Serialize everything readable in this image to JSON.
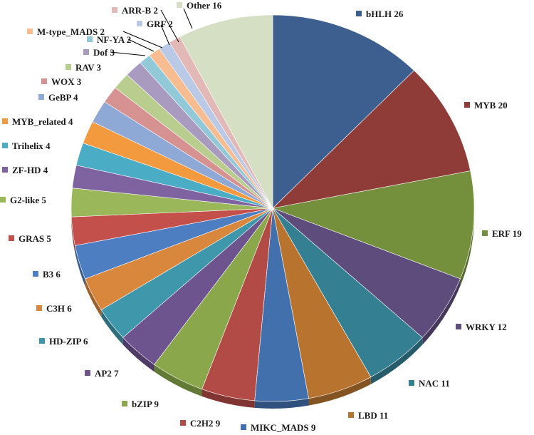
{
  "chart_data": {
    "type": "pie",
    "title": "",
    "start": "12 o'clock",
    "direction": "clockwise",
    "legend": "labels beside slices with colored square markers",
    "slices": [
      {
        "label": "bHLH",
        "value": 26,
        "color": "#3d5f8f"
      },
      {
        "label": "MYB",
        "value": 20,
        "color": "#8f3b38"
      },
      {
        "label": "ERF",
        "value": 19,
        "color": "#74903c"
      },
      {
        "label": "WRKY",
        "value": 12,
        "color": "#5e4c7c"
      },
      {
        "label": "NAC",
        "value": 11,
        "color": "#357f93"
      },
      {
        "label": "LBD",
        "value": 11,
        "color": "#b8732f"
      },
      {
        "label": "MIKC_MADS",
        "value": 9,
        "color": "#4270ad"
      },
      {
        "label": "C2H2",
        "value": 9,
        "color": "#b24a45"
      },
      {
        "label": "bZIP",
        "value": 9,
        "color": "#8aa84b"
      },
      {
        "label": "AP2",
        "value": 7,
        "color": "#6d548f"
      },
      {
        "label": "HD-ZIP",
        "value": 6,
        "color": "#3f97ac"
      },
      {
        "label": "C3H",
        "value": 6,
        "color": "#d8873d"
      },
      {
        "label": "B3",
        "value": 6,
        "color": "#4e7ec2"
      },
      {
        "label": "GRAS",
        "value": 5,
        "color": "#c4504c"
      },
      {
        "label": "G2-like",
        "value": 5,
        "color": "#9ab85a"
      },
      {
        "label": "ZF-HD",
        "value": 4,
        "color": "#7f63a1"
      },
      {
        "label": "Trihelix",
        "value": 4,
        "color": "#4bacc5"
      },
      {
        "label": "MYB_related",
        "value": 4,
        "color": "#f39a3f"
      },
      {
        "label": "GeBP",
        "value": 4,
        "color": "#8fa9d6"
      },
      {
        "label": "WOX",
        "value": 3,
        "color": "#d59291"
      },
      {
        "label": "RAV",
        "value": 3,
        "color": "#b9cd8f"
      },
      {
        "label": "Dof",
        "value": 3,
        "color": "#a99ac0"
      },
      {
        "label": "NF-YA",
        "value": 2,
        "color": "#92c9d8"
      },
      {
        "label": "M-type_MADS",
        "value": 2,
        "color": "#f7bc8f"
      },
      {
        "label": "GRF",
        "value": 2,
        "color": "#b9c9e6"
      },
      {
        "label": "ARR-B",
        "value": 2,
        "color": "#e3b9b8"
      },
      {
        "label": "Other",
        "value": 16,
        "color": "#d5dfc3"
      }
    ]
  }
}
